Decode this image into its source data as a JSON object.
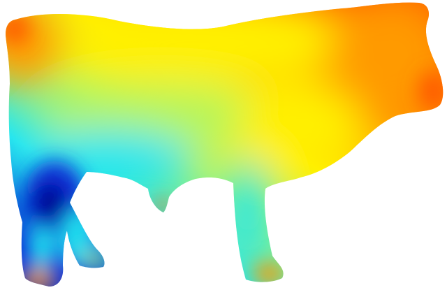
{
  "figure": {
    "subject": "cow-silhouette",
    "colormap": [
      "#00008f",
      "#0055ff",
      "#00ffff",
      "#7fff7f",
      "#ffff00",
      "#ff9f00",
      "#ff4000"
    ],
    "colors": {
      "cold": "#0a2fd6",
      "cool": "#22e6f0",
      "mild": "#b8f55a",
      "warm": "#fff000",
      "hot": "#ff9a00",
      "hottest": "#ff5a00",
      "background": "#ffffff"
    }
  }
}
